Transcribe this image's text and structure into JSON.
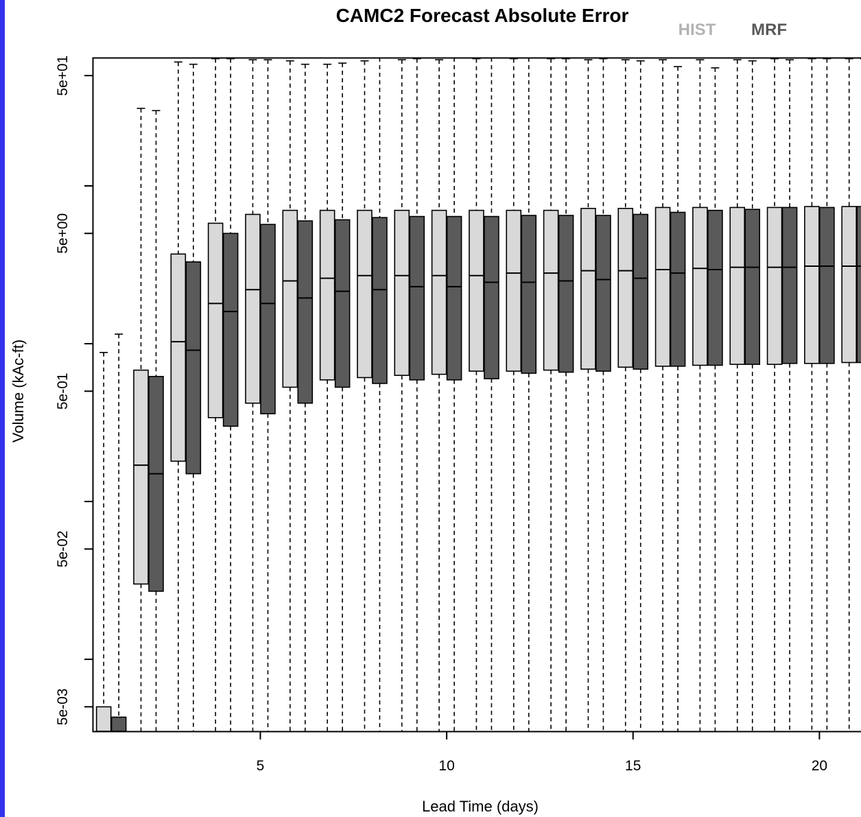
{
  "frame": {
    "left_bar_color": "#3333ee"
  },
  "chart_data": {
    "type": "boxplot",
    "title": "CAMC2 Forecast Absolute Error",
    "xlabel": "Lead Time (days)",
    "ylabel": "Volume (kAc-ft)",
    "y_scale": "log",
    "ylim": [
      0.0035,
      65
    ],
    "xlim": [
      0.5,
      21.3
    ],
    "x_ticks": [
      5,
      10,
      15,
      20
    ],
    "x_tick_labels": [
      "5",
      "10",
      "15",
      "20"
    ],
    "y_ticks_labeled": [
      0.005,
      0.05,
      0.5,
      5,
      50
    ],
    "y_tick_labels": [
      "5e-03",
      "5e-02",
      "5e-01",
      "5e+00",
      "5e+01"
    ],
    "y_ticks_minor": [
      0.01,
      0.1,
      1,
      10
    ],
    "grid": false,
    "legend": {
      "position": "top-right",
      "entries": [
        {
          "label": "HIST",
          "color": "#b3b3b3"
        },
        {
          "label": "MRF",
          "color": "#595959"
        }
      ]
    },
    "colors": {
      "HIST": "#d9d9d9",
      "MRF": "#5a5a5a"
    },
    "series": [
      {
        "name": "HIST",
        "fill": "#d9d9d9",
        "boxes": [
          {
            "day": 1,
            "low": 0.0035,
            "q1": 0.0035,
            "median": 0.0035,
            "q3": 0.005,
            "high": 0.88
          },
          {
            "day": 2,
            "low": 0.0035,
            "q1": 0.03,
            "median": 0.17,
            "q3": 0.68,
            "high": 31
          },
          {
            "day": 3,
            "low": 0.0035,
            "q1": 0.18,
            "median": 1.03,
            "q3": 3.7,
            "high": 61
          },
          {
            "day": 4,
            "low": 0.0035,
            "q1": 0.34,
            "median": 1.8,
            "q3": 5.8,
            "high": 64
          },
          {
            "day": 5,
            "low": 0.0035,
            "q1": 0.42,
            "median": 2.2,
            "q3": 6.6,
            "high": 63
          },
          {
            "day": 6,
            "low": 0.0035,
            "q1": 0.53,
            "median": 2.5,
            "q3": 7.0,
            "high": 62
          },
          {
            "day": 7,
            "low": 0.0035,
            "q1": 0.59,
            "median": 2.6,
            "q3": 7.0,
            "high": 59
          },
          {
            "day": 8,
            "low": 0.0035,
            "q1": 0.61,
            "median": 2.7,
            "q3": 7.0,
            "high": 62
          },
          {
            "day": 9,
            "low": 0.0035,
            "q1": 0.63,
            "median": 2.7,
            "q3": 7.0,
            "high": 63
          },
          {
            "day": 10,
            "low": 0.0035,
            "q1": 0.64,
            "median": 2.7,
            "q3": 7.0,
            "high": 63
          },
          {
            "day": 11,
            "low": 0.0035,
            "q1": 0.67,
            "median": 2.7,
            "q3": 7.0,
            "high": 64
          },
          {
            "day": 12,
            "low": 0.0035,
            "q1": 0.67,
            "median": 2.8,
            "q3": 7.0,
            "high": 64
          },
          {
            "day": 13,
            "low": 0.0035,
            "q1": 0.68,
            "median": 2.8,
            "q3": 7.0,
            "high": 64
          },
          {
            "day": 14,
            "low": 0.0035,
            "q1": 0.69,
            "median": 2.9,
            "q3": 7.2,
            "high": 63
          },
          {
            "day": 15,
            "low": 0.0035,
            "q1": 0.71,
            "median": 2.9,
            "q3": 7.2,
            "high": 63
          },
          {
            "day": 16,
            "low": 0.0035,
            "q1": 0.72,
            "median": 2.95,
            "q3": 7.3,
            "high": 63
          },
          {
            "day": 17,
            "low": 0.0035,
            "q1": 0.73,
            "median": 3.0,
            "q3": 7.3,
            "high": 63
          },
          {
            "day": 18,
            "low": 0.0035,
            "q1": 0.74,
            "median": 3.05,
            "q3": 7.3,
            "high": 63
          },
          {
            "day": 19,
            "low": 0.0035,
            "q1": 0.74,
            "median": 3.05,
            "q3": 7.3,
            "high": 64
          },
          {
            "day": 20,
            "low": 0.0035,
            "q1": 0.75,
            "median": 3.1,
            "q3": 7.4,
            "high": 64
          },
          {
            "day": 21,
            "low": 0.0035,
            "q1": 0.76,
            "median": 3.1,
            "q3": 7.4,
            "high": 64
          }
        ]
      },
      {
        "name": "MRF",
        "fill": "#5a5a5a",
        "boxes": [
          {
            "day": 1,
            "low": 0.0035,
            "q1": 0.0035,
            "median": 0.0035,
            "q3": 0.0043,
            "high": 1.15
          },
          {
            "day": 2,
            "low": 0.0035,
            "q1": 0.027,
            "median": 0.15,
            "q3": 0.62,
            "high": 30
          },
          {
            "day": 3,
            "low": 0.0035,
            "q1": 0.15,
            "median": 0.91,
            "q3": 3.3,
            "high": 59
          },
          {
            "day": 4,
            "low": 0.0035,
            "q1": 0.3,
            "median": 1.6,
            "q3": 5.0,
            "high": 64
          },
          {
            "day": 5,
            "low": 0.0035,
            "q1": 0.36,
            "median": 1.8,
            "q3": 5.7,
            "high": 63
          },
          {
            "day": 6,
            "low": 0.0035,
            "q1": 0.42,
            "median": 1.95,
            "q3": 6.0,
            "high": 59
          },
          {
            "day": 7,
            "low": 0.0035,
            "q1": 0.53,
            "median": 2.15,
            "q3": 6.1,
            "high": 60
          },
          {
            "day": 8,
            "low": 0.0035,
            "q1": 0.56,
            "median": 2.2,
            "q3": 6.3,
            "high": 72
          },
          {
            "day": 9,
            "low": 0.0035,
            "q1": 0.59,
            "median": 2.3,
            "q3": 6.4,
            "high": 64
          },
          {
            "day": 10,
            "low": 0.0035,
            "q1": 0.59,
            "median": 2.3,
            "q3": 6.4,
            "high": 70
          },
          {
            "day": 11,
            "low": 0.0035,
            "q1": 0.6,
            "median": 2.45,
            "q3": 6.4,
            "high": 67
          },
          {
            "day": 12,
            "low": 0.0035,
            "q1": 0.65,
            "median": 2.45,
            "q3": 6.5,
            "high": 67
          },
          {
            "day": 13,
            "low": 0.0035,
            "q1": 0.66,
            "median": 2.5,
            "q3": 6.5,
            "high": 64
          },
          {
            "day": 14,
            "low": 0.0035,
            "q1": 0.67,
            "median": 2.55,
            "q3": 6.5,
            "high": 64
          },
          {
            "day": 15,
            "low": 0.0035,
            "q1": 0.69,
            "median": 2.6,
            "q3": 6.6,
            "high": 62
          },
          {
            "day": 16,
            "low": 0.0035,
            "q1": 0.72,
            "median": 2.8,
            "q3": 6.8,
            "high": 57
          },
          {
            "day": 17,
            "low": 0.0035,
            "q1": 0.73,
            "median": 2.95,
            "q3": 7.0,
            "high": 56
          },
          {
            "day": 18,
            "low": 0.0035,
            "q1": 0.74,
            "median": 3.05,
            "q3": 7.1,
            "high": 62
          },
          {
            "day": 19,
            "low": 0.0035,
            "q1": 0.75,
            "median": 3.05,
            "q3": 7.3,
            "high": 63
          },
          {
            "day": 20,
            "low": 0.0035,
            "q1": 0.75,
            "median": 3.1,
            "q3": 7.3,
            "high": 64
          },
          {
            "day": 21,
            "low": 0.0035,
            "q1": 0.76,
            "median": 3.1,
            "q3": 7.4,
            "high": 64
          }
        ]
      }
    ]
  }
}
